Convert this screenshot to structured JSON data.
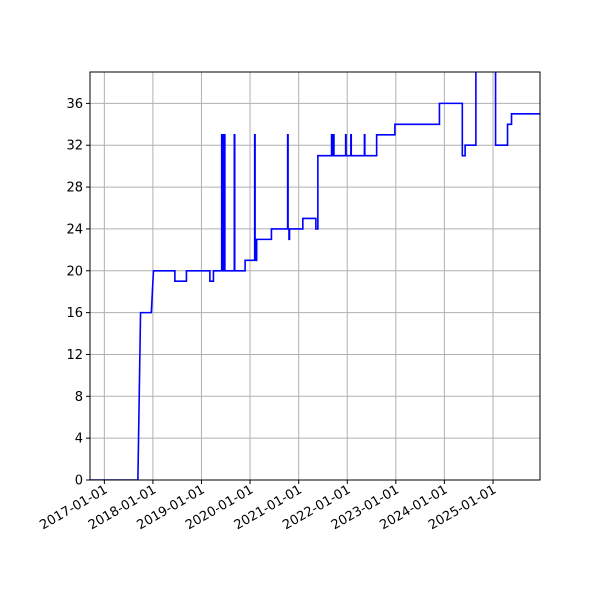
{
  "chart_data": {
    "type": "line",
    "title": "",
    "xlabel": "",
    "ylabel": "",
    "x_axis_type": "date",
    "xlim": [
      "2016-09-15",
      "2025-12-20"
    ],
    "ylim": [
      0,
      39
    ],
    "grid": true,
    "line_color": "#0000ff",
    "x_ticks": [
      "2017-01-01",
      "2018-01-01",
      "2019-01-01",
      "2020-01-01",
      "2021-01-01",
      "2022-01-01",
      "2023-01-01",
      "2024-01-01",
      "2025-01-01"
    ],
    "y_ticks": [
      0,
      4,
      8,
      12,
      16,
      20,
      24,
      28,
      32,
      36
    ],
    "series": [
      {
        "name": "",
        "points": [
          [
            "2016-09-15",
            0
          ],
          [
            "2017-09-10",
            0
          ],
          [
            "2017-09-30",
            16
          ],
          [
            "2017-12-20",
            16
          ],
          [
            "2018-01-05",
            20
          ],
          [
            "2018-06-15",
            20
          ],
          [
            "2018-06-15",
            19
          ],
          [
            "2018-09-10",
            19
          ],
          [
            "2018-09-10",
            20
          ],
          [
            "2018-12-20",
            20
          ],
          [
            "2019-03-05",
            20
          ],
          [
            "2019-03-05",
            19
          ],
          [
            "2019-04-01",
            19
          ],
          [
            "2019-04-01",
            20
          ],
          [
            "2019-06-02",
            20
          ],
          [
            "2019-06-02",
            33
          ],
          [
            "2019-06-06",
            33
          ],
          [
            "2019-06-06",
            20
          ],
          [
            "2019-06-12",
            20
          ],
          [
            "2019-06-12",
            33
          ],
          [
            "2019-06-16",
            33
          ],
          [
            "2019-06-16",
            20
          ],
          [
            "2019-06-22",
            20
          ],
          [
            "2019-06-22",
            33
          ],
          [
            "2019-06-26",
            33
          ],
          [
            "2019-06-26",
            20
          ],
          [
            "2019-09-05",
            20
          ],
          [
            "2019-09-05",
            33
          ],
          [
            "2019-09-08",
            33
          ],
          [
            "2019-09-08",
            20
          ],
          [
            "2019-11-25",
            20
          ],
          [
            "2019-11-25",
            21
          ],
          [
            "2020-02-05",
            21
          ],
          [
            "2020-02-05",
            33
          ],
          [
            "2020-02-08",
            33
          ],
          [
            "2020-02-08",
            21
          ],
          [
            "2020-02-20",
            21
          ],
          [
            "2020-02-20",
            23
          ],
          [
            "2020-06-10",
            23
          ],
          [
            "2020-06-10",
            24
          ],
          [
            "2020-10-10",
            24
          ],
          [
            "2020-10-10",
            33
          ],
          [
            "2020-10-13",
            33
          ],
          [
            "2020-10-13",
            24
          ],
          [
            "2020-10-20",
            24
          ],
          [
            "2020-10-20",
            23
          ],
          [
            "2020-10-24",
            23
          ],
          [
            "2020-10-24",
            24
          ],
          [
            "2021-02-01",
            24
          ],
          [
            "2021-02-01",
            25
          ],
          [
            "2021-05-10",
            25
          ],
          [
            "2021-05-10",
            24
          ],
          [
            "2021-05-25",
            24
          ],
          [
            "2021-05-25",
            31
          ],
          [
            "2021-09-05",
            31
          ],
          [
            "2021-09-05",
            33
          ],
          [
            "2021-09-08",
            33
          ],
          [
            "2021-09-08",
            31
          ],
          [
            "2021-09-20",
            31
          ],
          [
            "2021-09-20",
            33
          ],
          [
            "2021-09-23",
            33
          ],
          [
            "2021-09-23",
            31
          ],
          [
            "2021-12-20",
            31
          ],
          [
            "2021-12-20",
            33
          ],
          [
            "2021-12-23",
            33
          ],
          [
            "2021-12-23",
            31
          ],
          [
            "2022-01-28",
            31
          ],
          [
            "2022-01-28",
            33
          ],
          [
            "2022-01-31",
            33
          ],
          [
            "2022-01-31",
            31
          ],
          [
            "2022-05-10",
            31
          ],
          [
            "2022-05-10",
            33
          ],
          [
            "2022-05-13",
            33
          ],
          [
            "2022-05-13",
            31
          ],
          [
            "2022-08-10",
            31
          ],
          [
            "2022-08-10",
            33
          ],
          [
            "2022-12-25",
            33
          ],
          [
            "2022-12-25",
            34
          ],
          [
            "2023-11-25",
            34
          ],
          [
            "2023-11-25",
            36
          ],
          [
            "2024-05-15",
            36
          ],
          [
            "2024-05-15",
            31
          ],
          [
            "2024-06-05",
            31
          ],
          [
            "2024-06-05",
            32
          ],
          [
            "2024-08-25",
            32
          ],
          [
            "2024-08-25",
            40
          ],
          [
            "2025-01-20",
            40
          ],
          [
            "2025-01-20",
            32
          ],
          [
            "2025-04-20",
            32
          ],
          [
            "2025-04-20",
            34
          ],
          [
            "2025-05-20",
            34
          ],
          [
            "2025-05-20",
            35
          ],
          [
            "2026-01-10",
            35
          ],
          [
            "2026-01-10",
            37
          ],
          [
            "2026-10-20",
            37
          ]
        ]
      }
    ]
  }
}
